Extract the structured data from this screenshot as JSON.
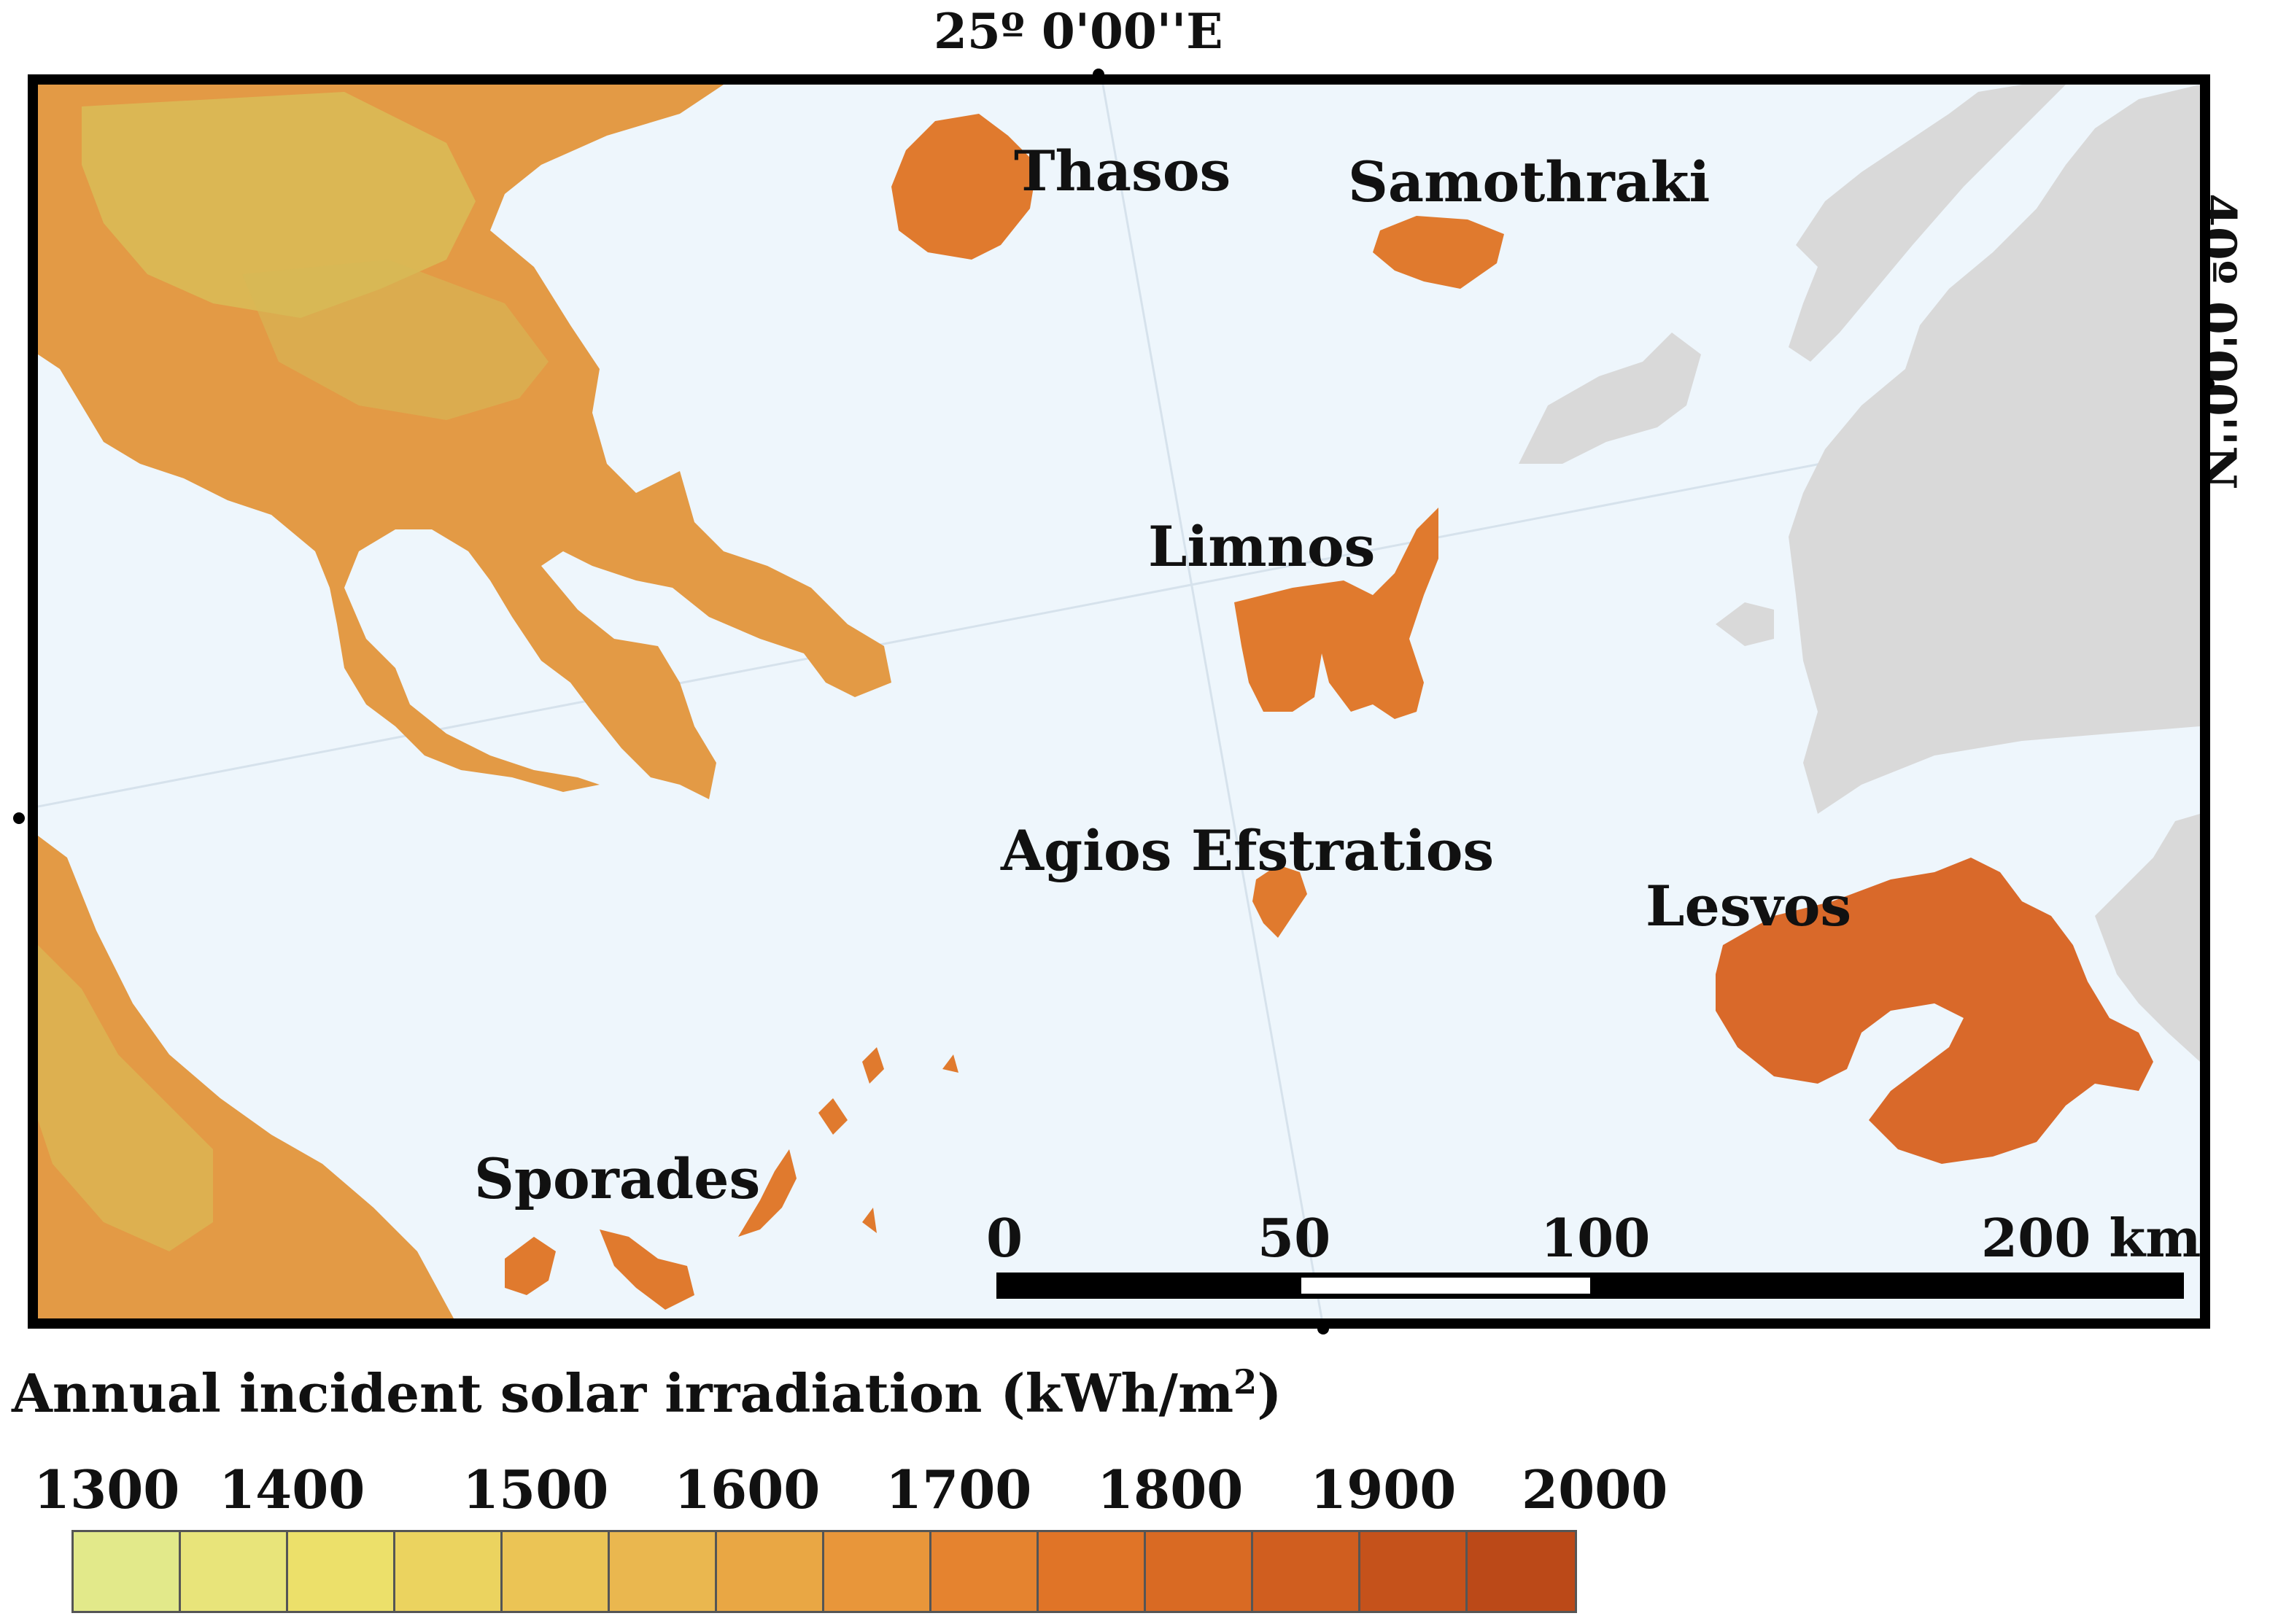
{
  "coordinates": {
    "top": "25º 0'00''E",
    "right": "40º 0'00''N"
  },
  "labels": {
    "thasos": "Thasos",
    "samothraki": "Samothraki",
    "limnos": "Limnos",
    "agios_efstratios": "Agios Efstratios",
    "lesvos": "Lesvos",
    "sporades": "Sporades"
  },
  "scale_bar": {
    "ticks": [
      "0",
      "50",
      "100",
      "200 km"
    ]
  },
  "legend": {
    "title": "Annual incident solar irradiation (kWh/m",
    "title_superscript": "2",
    "title_end": ")",
    "ticks": [
      "1300",
      "1400",
      "1500",
      "1600",
      "1700",
      "1800",
      "1900",
      "2000"
    ],
    "colors": [
      "#e2e98a",
      "#e8e47a",
      "#ece06a",
      "#ebd35f",
      "#ebc455",
      "#eab74f",
      "#e9a744",
      "#e8963a",
      "#e5832f",
      "#e07427",
      "#d96a23",
      "#d05e1f",
      "#c5521b",
      "#bb4918"
    ]
  },
  "map_colors": {
    "sea": "#eef6fc",
    "land_greece": "#e39a45",
    "land_highland": "#d8c059",
    "turkey": "#d9d9d9",
    "island": "#e07a2e",
    "lesvos": "#d9692a"
  }
}
